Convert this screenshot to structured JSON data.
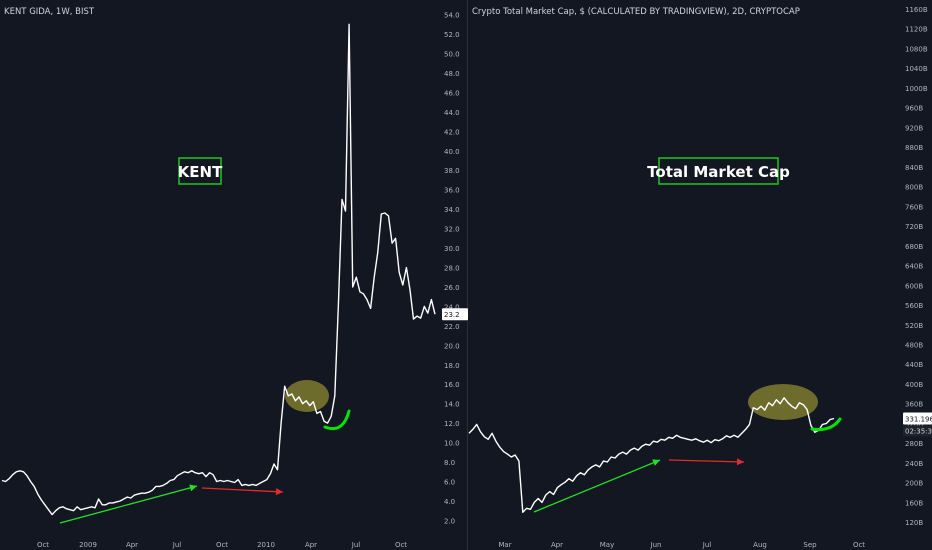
{
  "chart_data": [
    {
      "type": "line",
      "title": "KENT GIDA, 1W, BIST",
      "label": "KENT",
      "x_ticks": [
        "Oct",
        "2009",
        "Apr",
        "Jul",
        "Oct",
        "2010",
        "Apr",
        "Jul",
        "Oct"
      ],
      "y_ticks": [
        "2.0",
        "4.0",
        "6.0",
        "8.0",
        "10.0",
        "12.0",
        "14.0",
        "16.0",
        "18.0",
        "20.0",
        "22.0",
        "24.0",
        "26.0",
        "28.0",
        "30.0",
        "32.0",
        "34.0",
        "36.0",
        "38.0",
        "40.0",
        "42.0",
        "44.0",
        "46.0",
        "48.0",
        "50.0",
        "52.0",
        "54.0"
      ],
      "ylim": [
        0.5,
        55.5
      ],
      "last_value_label": "23.2",
      "series": [
        {
          "color": "#ffffff",
          "values": [
            6.1,
            6.0,
            6.3,
            6.7,
            7.0,
            7.1,
            7.0,
            6.6,
            6.0,
            5.5,
            4.7,
            4.1,
            3.6,
            3.1,
            2.6,
            3.0,
            3.3,
            3.4,
            3.2,
            3.1,
            3.0,
            3.4,
            3.1,
            3.2,
            3.3,
            3.4,
            3.3,
            4.2,
            3.6,
            3.6,
            3.8,
            3.8,
            3.9,
            4.0,
            4.2,
            4.4,
            4.3,
            4.6,
            4.7,
            4.8,
            4.8,
            4.9,
            5.1,
            5.5,
            5.5,
            5.6,
            5.8,
            6.1,
            6.2,
            6.6,
            6.8,
            7.0,
            6.9,
            7.1,
            6.9,
            6.8,
            6.9,
            6.5,
            6.9,
            6.7,
            6.0,
            6.1,
            6.0,
            6.1,
            6.0,
            5.9,
            6.2,
            5.6,
            5.7,
            5.6,
            5.7,
            5.6,
            5.8,
            6.0,
            6.2,
            6.8,
            7.8,
            7.2,
            12.0,
            15.8,
            14.8,
            15.0,
            14.3,
            14.7,
            14.0,
            14.3,
            13.8,
            14.2,
            13.0,
            13.2,
            12.2,
            12.0,
            12.7,
            14.8,
            24.2,
            35.0,
            33.8,
            53.0,
            26.0,
            27.0,
            25.5,
            25.3,
            24.7,
            23.8,
            27.0,
            29.5,
            33.5,
            33.6,
            33.3,
            30.5,
            31.0,
            27.5,
            26.2,
            28.0,
            25.7,
            22.7,
            23.0,
            22.8,
            24.0,
            23.3,
            24.7,
            23.2
          ]
        }
      ],
      "annotations": [
        {
          "kind": "arrow",
          "color": "#25e025"
        },
        {
          "kind": "arrow",
          "color": "#e22b2b"
        },
        {
          "kind": "highlight",
          "color": "#b9b236"
        },
        {
          "kind": "arc",
          "color": "#00e600"
        }
      ]
    },
    {
      "type": "line",
      "title": "Crypto Total Market Cap, $ (CALCULATED BY TRADINGVIEW), 2D, CRYPTOCAP",
      "label": "Total Market Cap",
      "x_ticks": [
        "Mar",
        "Apr",
        "May",
        "Jun",
        "Jul",
        "Aug",
        "Sep",
        "Oct"
      ],
      "y_ticks": [
        "120B",
        "160B",
        "200B",
        "240B",
        "280B",
        "320B",
        "360B",
        "400B",
        "440B",
        "480B",
        "520B",
        "560B",
        "600B",
        "640B",
        "680B",
        "720B",
        "760B",
        "800B",
        "840B",
        "880B",
        "920B",
        "960B",
        "1000B",
        "1040B",
        "1080B",
        "1120B",
        "1160B"
      ],
      "ylim": [
        94,
        1178
      ],
      "last_value_label": "331.196B",
      "countdown_label": "02:35:36",
      "series": [
        {
          "color": "#ffffff",
          "values": [
            300,
            308,
            318,
            303,
            293,
            288,
            300,
            284,
            272,
            263,
            258,
            252,
            256,
            244,
            140,
            148,
            146,
            160,
            168,
            160,
            175,
            182,
            176,
            190,
            196,
            201,
            208,
            203,
            214,
            220,
            216,
            226,
            232,
            236,
            232,
            244,
            242,
            252,
            250,
            258,
            262,
            258,
            266,
            270,
            266,
            274,
            278,
            276,
            284,
            282,
            288,
            286,
            292,
            290,
            296,
            292,
            290,
            288,
            286,
            289,
            285,
            282,
            286,
            281,
            287,
            285,
            289,
            295,
            292,
            296,
            292,
            300,
            308,
            318,
            352,
            348,
            355,
            347,
            362,
            356,
            368,
            360,
            372,
            362,
            355,
            350,
            362,
            358,
            348,
            316,
            302,
            306,
            318,
            320,
            328,
            330
          ]
        }
      ],
      "annotations": [
        {
          "kind": "arrow",
          "color": "#25e025"
        },
        {
          "kind": "arrow",
          "color": "#e22b2b"
        },
        {
          "kind": "highlight",
          "color": "#b9b236"
        },
        {
          "kind": "arc",
          "color": "#00e600"
        }
      ]
    }
  ]
}
